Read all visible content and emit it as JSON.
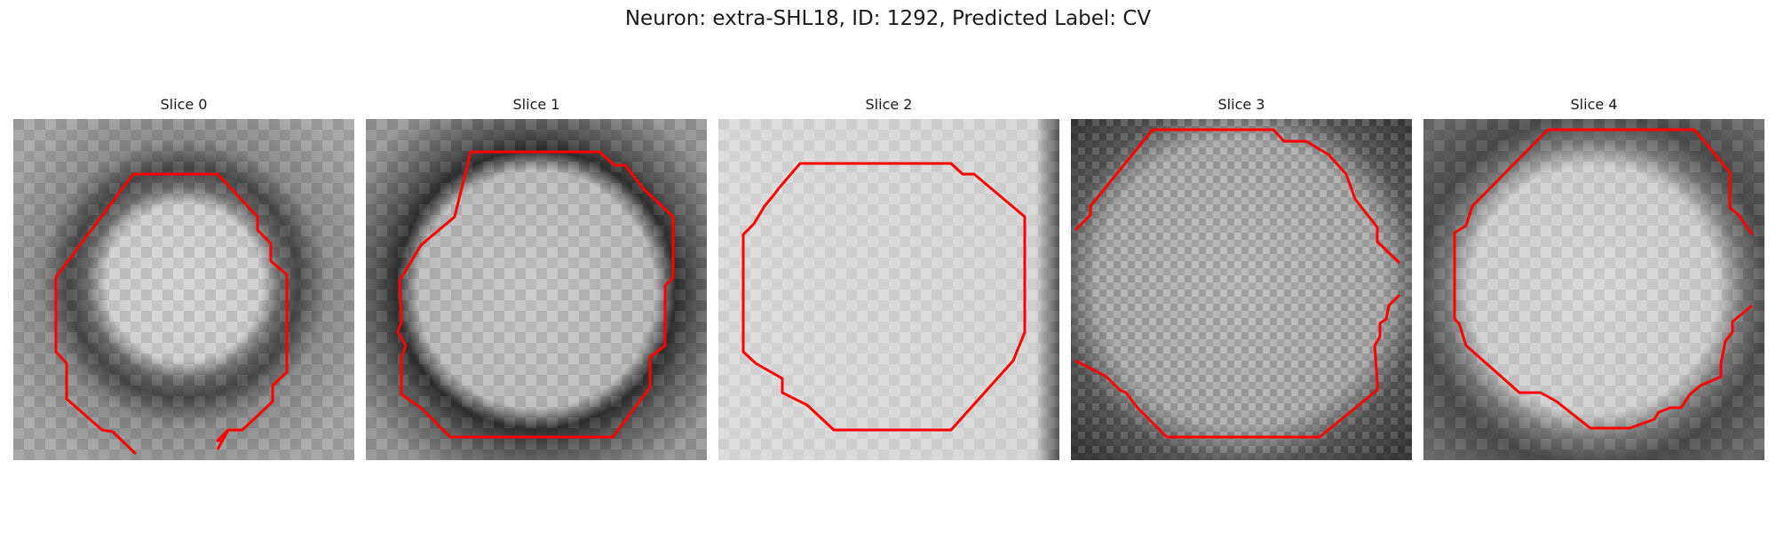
{
  "figure": {
    "title": "Neuron: extra-SHL18, ID: 1292, Predicted Label: CV"
  },
  "panels": [
    {
      "title": "Slice 0",
      "contour_color": "#ff0000"
    },
    {
      "title": "Slice 1",
      "contour_color": "#ff0000"
    },
    {
      "title": "Slice 2",
      "contour_color": "#ff0000"
    },
    {
      "title": "Slice 3",
      "contour_color": "#ff0000"
    },
    {
      "title": "Slice 4",
      "contour_color": "#ff0000"
    }
  ]
}
